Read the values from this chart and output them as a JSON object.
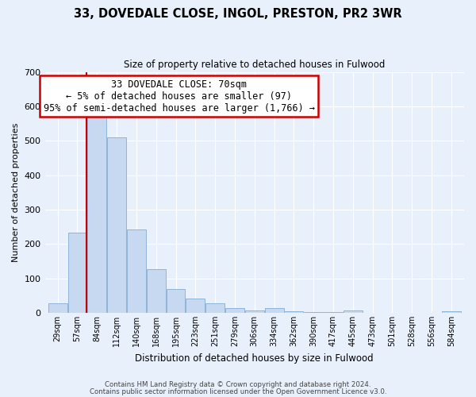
{
  "title": "33, DOVEDALE CLOSE, INGOL, PRESTON, PR2 3WR",
  "subtitle": "Size of property relative to detached houses in Fulwood",
  "xlabel": "Distribution of detached houses by size in Fulwood",
  "ylabel": "Number of detached properties",
  "bar_labels": [
    "29sqm",
    "57sqm",
    "84sqm",
    "112sqm",
    "140sqm",
    "168sqm",
    "195sqm",
    "223sqm",
    "251sqm",
    "279sqm",
    "306sqm",
    "334sqm",
    "362sqm",
    "390sqm",
    "417sqm",
    "445sqm",
    "473sqm",
    "501sqm",
    "528sqm",
    "556sqm",
    "584sqm"
  ],
  "bar_values": [
    28,
    232,
    570,
    510,
    242,
    127,
    70,
    42,
    27,
    14,
    8,
    13,
    5,
    3,
    2,
    8,
    1,
    0,
    0,
    0,
    5
  ],
  "bar_color": "#c6d9f1",
  "bar_edge_color": "#8fb4d9",
  "ylim": [
    0,
    700
  ],
  "yticks": [
    0,
    100,
    200,
    300,
    400,
    500,
    600,
    700
  ],
  "property_line_color": "#cc0000",
  "annotation_title": "33 DOVEDALE CLOSE: 70sqm",
  "annotation_line1": "← 5% of detached houses are smaller (97)",
  "annotation_line2": "95% of semi-detached houses are larger (1,766) →",
  "annotation_box_color": "#ffffff",
  "annotation_box_edge": "#cc0000",
  "footer_line1": "Contains HM Land Registry data © Crown copyright and database right 2024.",
  "footer_line2": "Contains public sector information licensed under the Open Government Licence v3.0.",
  "bin_width": 28,
  "bg_color": "#e8f0fb"
}
